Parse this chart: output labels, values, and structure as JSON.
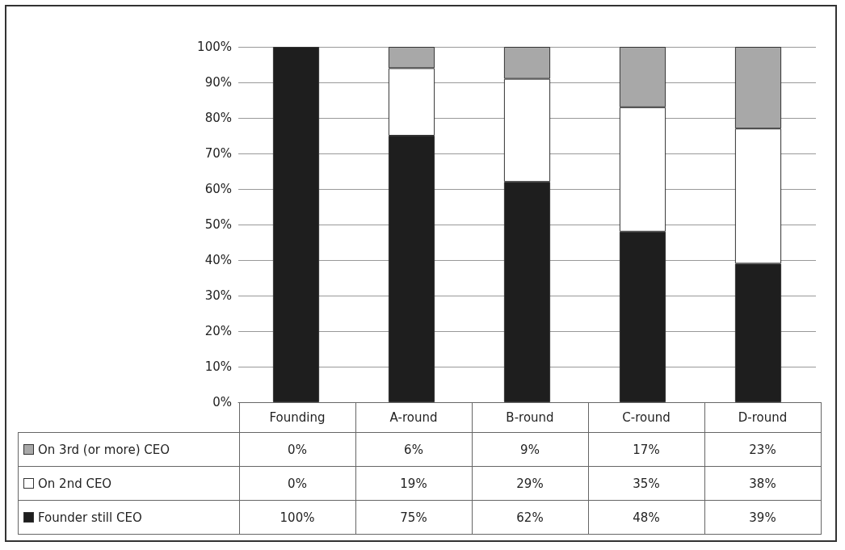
{
  "chart_data": {
    "type": "bar",
    "stacked": true,
    "categories": [
      "Founding",
      "A-round",
      "B-round",
      "C-round",
      "D-round"
    ],
    "series": [
      {
        "name": "Founder still CEO",
        "color": "#1e1e1e",
        "values": [
          100,
          75,
          62,
          48,
          39
        ],
        "value_labels": [
          "100%",
          "75%",
          "62%",
          "48%",
          "39%"
        ]
      },
      {
        "name": "On 2nd CEO",
        "color": "#ffffff",
        "values": [
          0,
          19,
          29,
          35,
          38
        ],
        "value_labels": [
          "0%",
          "19%",
          "29%",
          "35%",
          "38%"
        ]
      },
      {
        "name": "On 3rd (or more) CEO",
        "color": "#a8a8a8",
        "values": [
          0,
          6,
          9,
          17,
          23
        ],
        "value_labels": [
          "0%",
          "6%",
          "9%",
          "17%",
          "23%"
        ]
      }
    ],
    "ylim": [
      0,
      100
    ],
    "yticks": [
      {
        "value": 0,
        "label": "0%"
      },
      {
        "value": 10,
        "label": "10%"
      },
      {
        "value": 20,
        "label": "20%"
      },
      {
        "value": 30,
        "label": "30%"
      },
      {
        "value": 40,
        "label": "40%"
      },
      {
        "value": 50,
        "label": "50%"
      },
      {
        "value": 60,
        "label": "60%"
      },
      {
        "value": 70,
        "label": "70%"
      },
      {
        "value": 80,
        "label": "80%"
      },
      {
        "value": 90,
        "label": "90%"
      },
      {
        "value": 100,
        "label": "100%"
      }
    ],
    "grid": "y",
    "legend": "bottom left"
  }
}
